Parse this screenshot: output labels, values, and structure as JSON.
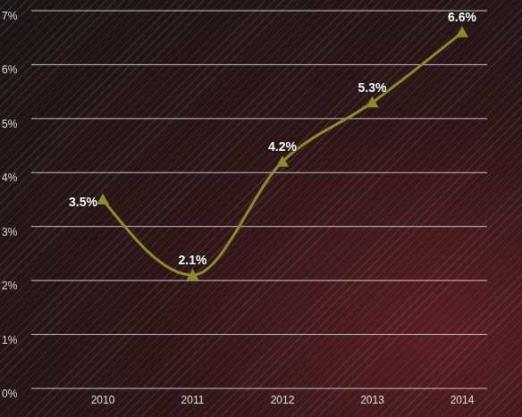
{
  "chart_data": {
    "type": "line",
    "categories": [
      "2010",
      "2011",
      "2012",
      "2013",
      "2014"
    ],
    "values": [
      3.5,
      2.1,
      4.2,
      5.3,
      6.6
    ],
    "value_labels": [
      "3.5%",
      "2.1%",
      "4.2%",
      "5.3%",
      "6.6%"
    ],
    "data_labels": true,
    "color": "#8e8c2c",
    "marker": "triangle",
    "line_style": "solid",
    "ylim": [
      0,
      7
    ],
    "yticks": [
      {
        "value": 0,
        "label": "0%"
      },
      {
        "value": 1,
        "label": "1%"
      },
      {
        "value": 2,
        "label": "2%"
      },
      {
        "value": 3,
        "label": "3%"
      },
      {
        "value": 4,
        "label": "4%"
      },
      {
        "value": 5,
        "label": "5%"
      },
      {
        "value": 6,
        "label": "6%"
      },
      {
        "value": 7,
        "label": "7%"
      }
    ],
    "grid": true
  }
}
